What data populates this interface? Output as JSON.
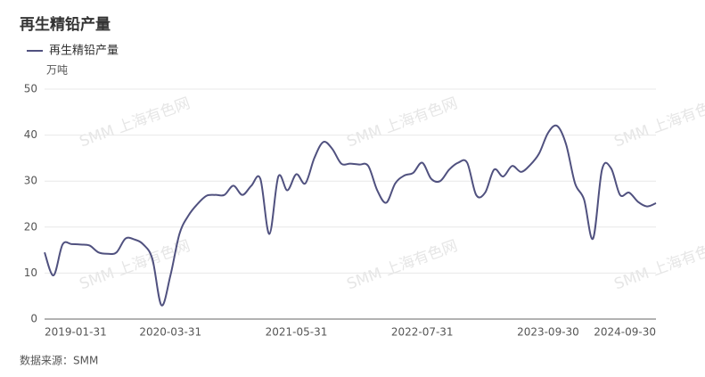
{
  "chart_data": {
    "type": "line",
    "title": "再生精铅产量",
    "y_unit": "万吨",
    "source": "数据来源：SMM",
    "watermark": "SMM 上海有色网",
    "categories": [
      "2019-01-31",
      null,
      null,
      null,
      null,
      null,
      null,
      null,
      null,
      null,
      null,
      null,
      null,
      null,
      "2020-03-31",
      null,
      null,
      null,
      null,
      null,
      null,
      null,
      null,
      null,
      null,
      null,
      null,
      null,
      "2021-05-31",
      null,
      null,
      null,
      null,
      null,
      null,
      null,
      null,
      null,
      null,
      null,
      null,
      null,
      "2022-07-31",
      null,
      null,
      null,
      null,
      null,
      null,
      null,
      null,
      null,
      null,
      null,
      null,
      null,
      "2023-09-30",
      null,
      null,
      null,
      null,
      null,
      null,
      null,
      null,
      null,
      null,
      null,
      "2024-09-30"
    ],
    "series": [
      {
        "name": "再生精铅产量",
        "color": "#50517f",
        "values": [
          14.5,
          9.5,
          16.2,
          16.3,
          16.2,
          16,
          14.5,
          14.2,
          14.5,
          17.5,
          17.3,
          16.2,
          13,
          3,
          9.5,
          18.5,
          22.5,
          25,
          26.8,
          27,
          27,
          29,
          27,
          29,
          30.5,
          18.5,
          31,
          28,
          31.5,
          29.5,
          35,
          38.5,
          37,
          33.8,
          33.8,
          33.6,
          33.3,
          28,
          25.3,
          29.5,
          31.2,
          31.8,
          34,
          30.5,
          30,
          32.5,
          34,
          34,
          27,
          27.5,
          32.5,
          31,
          33.3,
          32,
          33.5,
          36,
          40.5,
          42,
          38,
          29.5,
          26,
          17.5,
          32.5,
          32.8,
          27,
          27.5,
          25.5,
          24.5,
          25.2
        ]
      }
    ],
    "ylim": [
      0,
      50
    ],
    "yticks": [
      0,
      10,
      20,
      30,
      40,
      50
    ],
    "grid": true,
    "legend": "top-left"
  }
}
